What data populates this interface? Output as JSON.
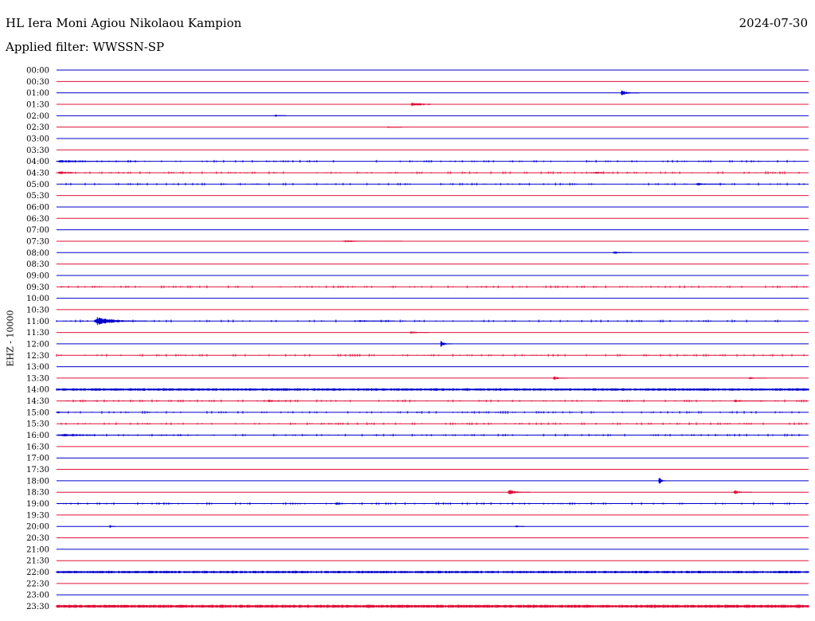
{
  "header": {
    "station": "HL Iera Moni Agiou Nikolaou Kampion",
    "date": "2024-07-30",
    "filter": "Applied filter: WWSSN-SP"
  },
  "chart_data": {
    "type": "line",
    "title": "HL Iera Moni Agiou Nikolaou Kampion",
    "ylabel": "EHZ - 10000",
    "row_labels": [
      "00:00",
      "00:30",
      "01:00",
      "01:30",
      "02:00",
      "02:30",
      "03:00",
      "03:30",
      "04:00",
      "04:30",
      "05:00",
      "05:30",
      "06:00",
      "06:30",
      "07:00",
      "07:30",
      "08:00",
      "08:30",
      "09:00",
      "09:30",
      "10:00",
      "10:30",
      "11:00",
      "11:30",
      "12:00",
      "12:30",
      "13:00",
      "13:30",
      "14:00",
      "14:30",
      "15:00",
      "15:30",
      "16:00",
      "16:30",
      "17:00",
      "17:30",
      "18:00",
      "18:30",
      "19:00",
      "19:30",
      "20:00",
      "20:30",
      "21:00",
      "21:30",
      "22:00",
      "22:30",
      "23:00",
      "23:30"
    ],
    "row_minutes": 30,
    "colors": {
      "even_rows": "#0000cc",
      "odd_rows": "#e0103a"
    },
    "events": [
      {
        "row": 2,
        "pos": 0.75,
        "amp": 4,
        "dur": 0.025
      },
      {
        "row": 3,
        "pos": 0.47,
        "amp": 3,
        "dur": 0.06
      },
      {
        "row": 4,
        "pos": 0.29,
        "amp": 2,
        "dur": 0.015
      },
      {
        "row": 5,
        "pos": 0.44,
        "amp": 1.5,
        "dur": 0.02
      },
      {
        "row": 8,
        "pos": 0.0,
        "amp": 2,
        "dur": 0.11
      },
      {
        "row": 9,
        "pos": 0.71,
        "amp": 1.5,
        "dur": 0.1
      },
      {
        "row": 9,
        "pos": 0.0,
        "amp": 2,
        "dur": 0.065
      },
      {
        "row": 10,
        "pos": 0.85,
        "amp": 2,
        "dur": 0.04
      },
      {
        "row": 16,
        "pos": 0.74,
        "amp": 2,
        "dur": 0.025
      },
      {
        "row": 15,
        "pos": 0.38,
        "amp": 1.5,
        "dur": 0.08
      },
      {
        "row": 22,
        "pos": 0.05,
        "amp": 6,
        "dur": 0.07
      },
      {
        "row": 22,
        "pos": 0.4,
        "amp": 1.5,
        "dur": 0.05
      },
      {
        "row": 23,
        "pos": 0.47,
        "amp": 2.5,
        "dur": 0.025
      },
      {
        "row": 24,
        "pos": 0.51,
        "amp": 5,
        "dur": 0.015
      },
      {
        "row": 27,
        "pos": 0.66,
        "amp": 3,
        "dur": 0.02
      },
      {
        "row": 27,
        "pos": 0.92,
        "amp": 2,
        "dur": 0.025
      },
      {
        "row": 28,
        "pos": 0.0,
        "amp": 1.5,
        "dur": 1.0
      },
      {
        "row": 29,
        "pos": 0.28,
        "amp": 2,
        "dur": 0.03
      },
      {
        "row": 29,
        "pos": 0.9,
        "amp": 2,
        "dur": 0.04
      },
      {
        "row": 30,
        "pos": 0.0,
        "amp": 2,
        "dur": 0.015
      },
      {
        "row": 32,
        "pos": 0.0,
        "amp": 2,
        "dur": 0.18
      },
      {
        "row": 36,
        "pos": 0.8,
        "amp": 7,
        "dur": 0.01
      },
      {
        "row": 37,
        "pos": 0.6,
        "amp": 4,
        "dur": 0.03
      },
      {
        "row": 37,
        "pos": 0.9,
        "amp": 3,
        "dur": 0.025
      },
      {
        "row": 38,
        "pos": 0.37,
        "amp": 2,
        "dur": 0.04
      },
      {
        "row": 40,
        "pos": 0.07,
        "amp": 3,
        "dur": 0.008
      },
      {
        "row": 40,
        "pos": 0.61,
        "amp": 2.5,
        "dur": 0.012
      },
      {
        "row": 44,
        "pos": 0.0,
        "amp": 1.5,
        "dur": 1.0
      },
      {
        "row": 47,
        "pos": 0.0,
        "amp": 2,
        "dur": 1.0
      }
    ],
    "noisy_rows": [
      8,
      9,
      10,
      19,
      22,
      25,
      28,
      29,
      30,
      31,
      32,
      38,
      44,
      47
    ]
  }
}
